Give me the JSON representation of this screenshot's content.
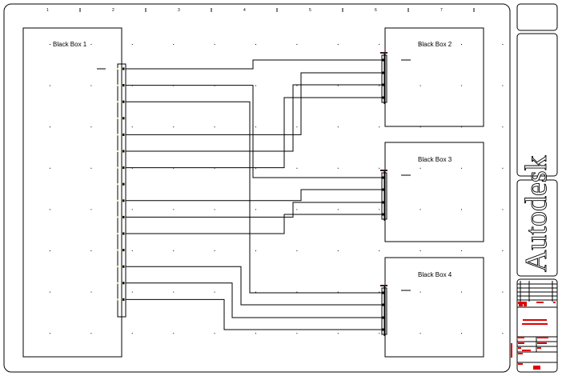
{
  "drawing": {
    "ruler_labels": [
      "1",
      "2",
      "3",
      "4",
      "5",
      "6",
      "7"
    ],
    "logo": "Autodesk",
    "colors": {
      "line": "#000000",
      "title_block_text": "#e00000",
      "pin_marker": "#ffff00"
    },
    "boxes": [
      {
        "id": "bb1",
        "label": "Black Box 1",
        "pin_count": 15
      },
      {
        "id": "bb2",
        "label": "Black Box 2",
        "pin_count": 4
      },
      {
        "id": "bb3",
        "label": "Black Box 3",
        "pin_count": 4
      },
      {
        "id": "bb4",
        "label": "Black Box 4",
        "pin_count": 4
      }
    ],
    "connections": [
      {
        "from_pin": 1,
        "to_box": "bb2",
        "to_pin": 1
      },
      {
        "from_pin": 2,
        "to_box": "bb3",
        "to_pin": 1
      },
      {
        "from_pin": 3,
        "to_box": "bb4",
        "to_pin": 1
      },
      {
        "from_pin": 5,
        "to_box": "bb2",
        "to_pin": 2
      },
      {
        "from_pin": 6,
        "to_box": "bb2",
        "to_pin": 3
      },
      {
        "from_pin": 7,
        "to_box": "bb2",
        "to_pin": 4
      },
      {
        "from_pin": 9,
        "to_box": "bb3",
        "to_pin": 2
      },
      {
        "from_pin": 10,
        "to_box": "bb3",
        "to_pin": 3
      },
      {
        "from_pin": 11,
        "to_box": "bb3",
        "to_pin": 4
      },
      {
        "from_pin": 13,
        "to_box": "bb4",
        "to_pin": 2
      },
      {
        "from_pin": 14,
        "to_box": "bb4",
        "to_pin": 3
      },
      {
        "from_pin": 15,
        "to_box": "bb4",
        "to_pin": 4
      }
    ]
  }
}
